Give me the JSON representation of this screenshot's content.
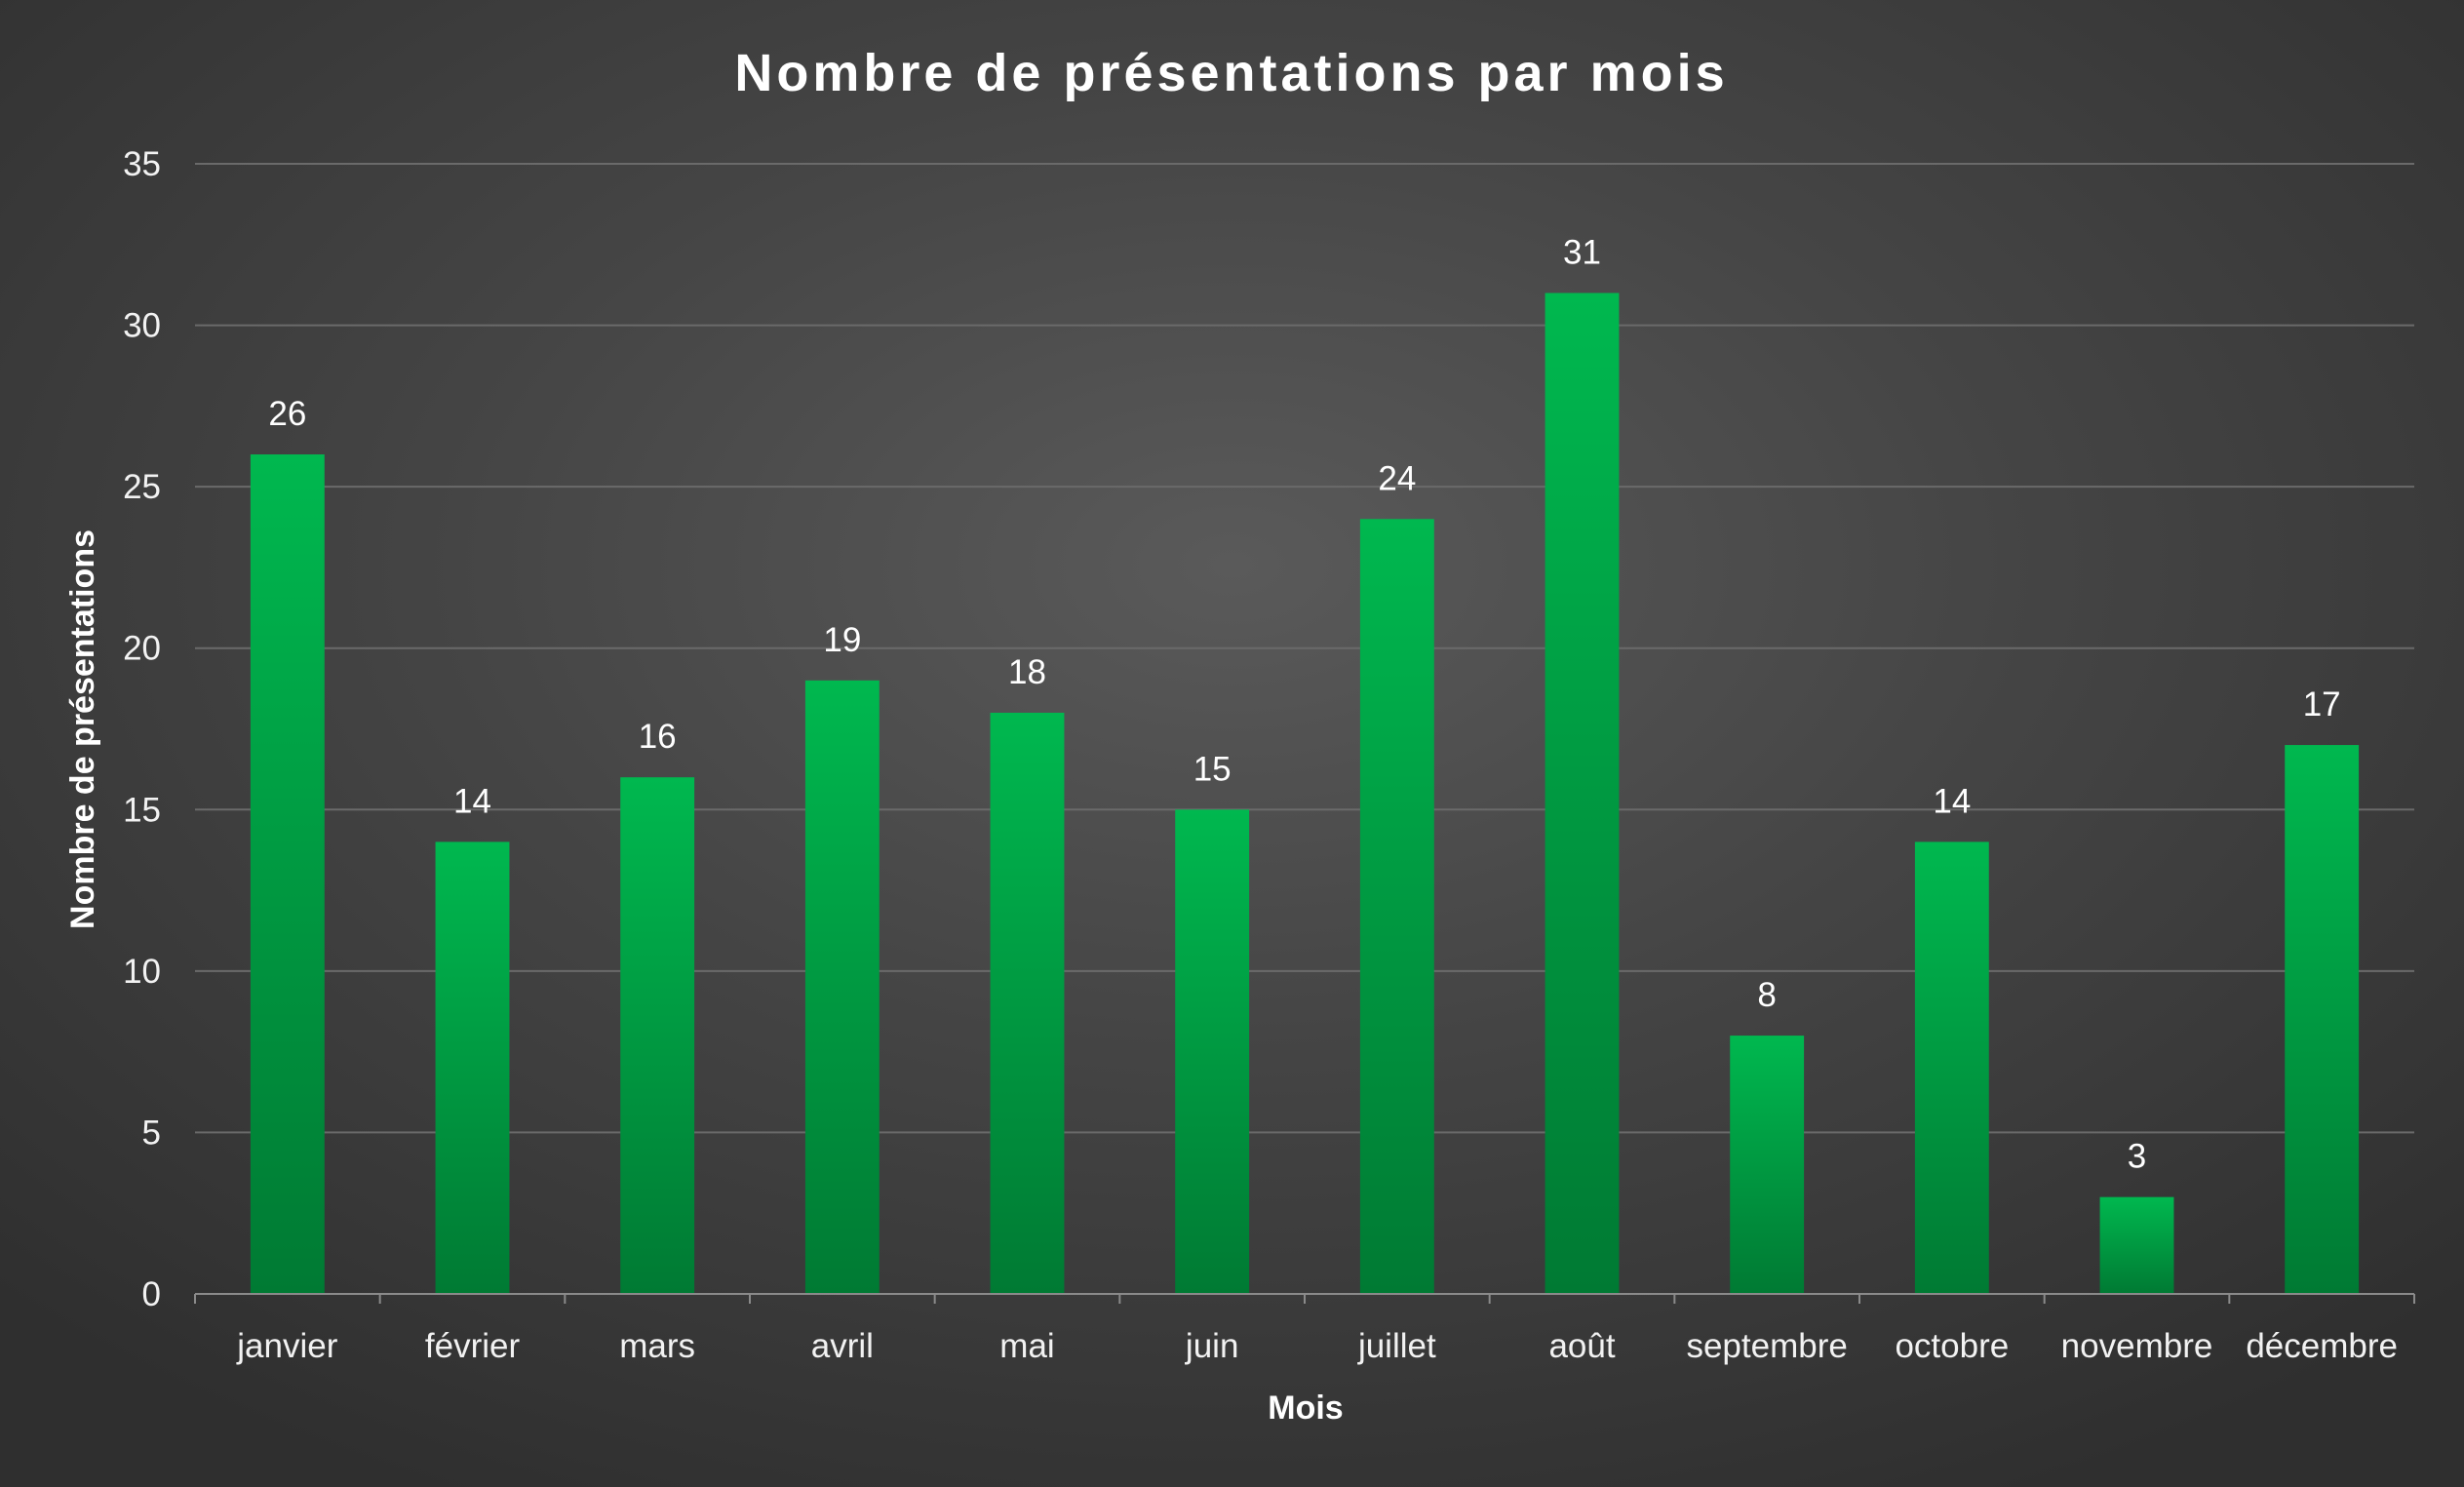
{
  "colors": {
    "bar_top": "#00b84f",
    "bar_bottom": "#007a33",
    "text": "#ffffff",
    "gridline": "#6a6a6a"
  },
  "chart_data": {
    "type": "bar",
    "title": "Nombre de présentations par mois",
    "xlabel": "Mois",
    "ylabel": "Nombre de présentations",
    "categories": [
      "janvier",
      "février",
      "mars",
      "avril",
      "mai",
      "juin",
      "juillet",
      "août",
      "septembre",
      "octobre",
      "novembre",
      "décembre"
    ],
    "values": [
      26,
      14,
      16,
      19,
      18,
      15,
      24,
      31,
      8,
      14,
      3,
      17
    ],
    "ylim": [
      0,
      35
    ],
    "yticks": [
      0,
      5,
      10,
      15,
      20,
      25,
      30,
      35
    ],
    "grid": true,
    "legend": "none",
    "data_labels": true
  }
}
